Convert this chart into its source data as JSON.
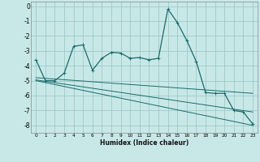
{
  "title": "",
  "xlabel": "Humidex (Indice chaleur)",
  "bg_color": "#c8e8e8",
  "grid_color": "#a0c8c8",
  "line_color": "#1a6b6b",
  "xlim": [
    -0.5,
    23.5
  ],
  "ylim": [
    -8.5,
    0.3
  ],
  "yticks": [
    0,
    -1,
    -2,
    -3,
    -4,
    -5,
    -6,
    -7,
    -8
  ],
  "xticks": [
    0,
    1,
    2,
    3,
    4,
    5,
    6,
    7,
    8,
    9,
    10,
    11,
    12,
    13,
    14,
    15,
    16,
    17,
    18,
    19,
    20,
    21,
    22,
    23
  ],
  "main_x": [
    0,
    1,
    2,
    3,
    4,
    5,
    6,
    7,
    8,
    9,
    10,
    11,
    12,
    13,
    14,
    15,
    16,
    17,
    18,
    19,
    20,
    21,
    22,
    23
  ],
  "main_y": [
    -3.6,
    -5.0,
    -5.0,
    -4.5,
    -2.7,
    -2.6,
    -4.3,
    -3.5,
    -3.1,
    -3.15,
    -3.5,
    -3.45,
    -3.6,
    -3.5,
    -0.2,
    -1.1,
    -2.3,
    -3.7,
    -5.8,
    -5.85,
    -5.85,
    -7.0,
    -7.1,
    -7.9
  ],
  "lines": [
    {
      "x": [
        0,
        23
      ],
      "y": [
        -4.8,
        -5.85
      ]
    },
    {
      "x": [
        0,
        23
      ],
      "y": [
        -4.95,
        -7.1
      ]
    },
    {
      "x": [
        0,
        23
      ],
      "y": [
        -5.0,
        -8.0
      ]
    }
  ]
}
